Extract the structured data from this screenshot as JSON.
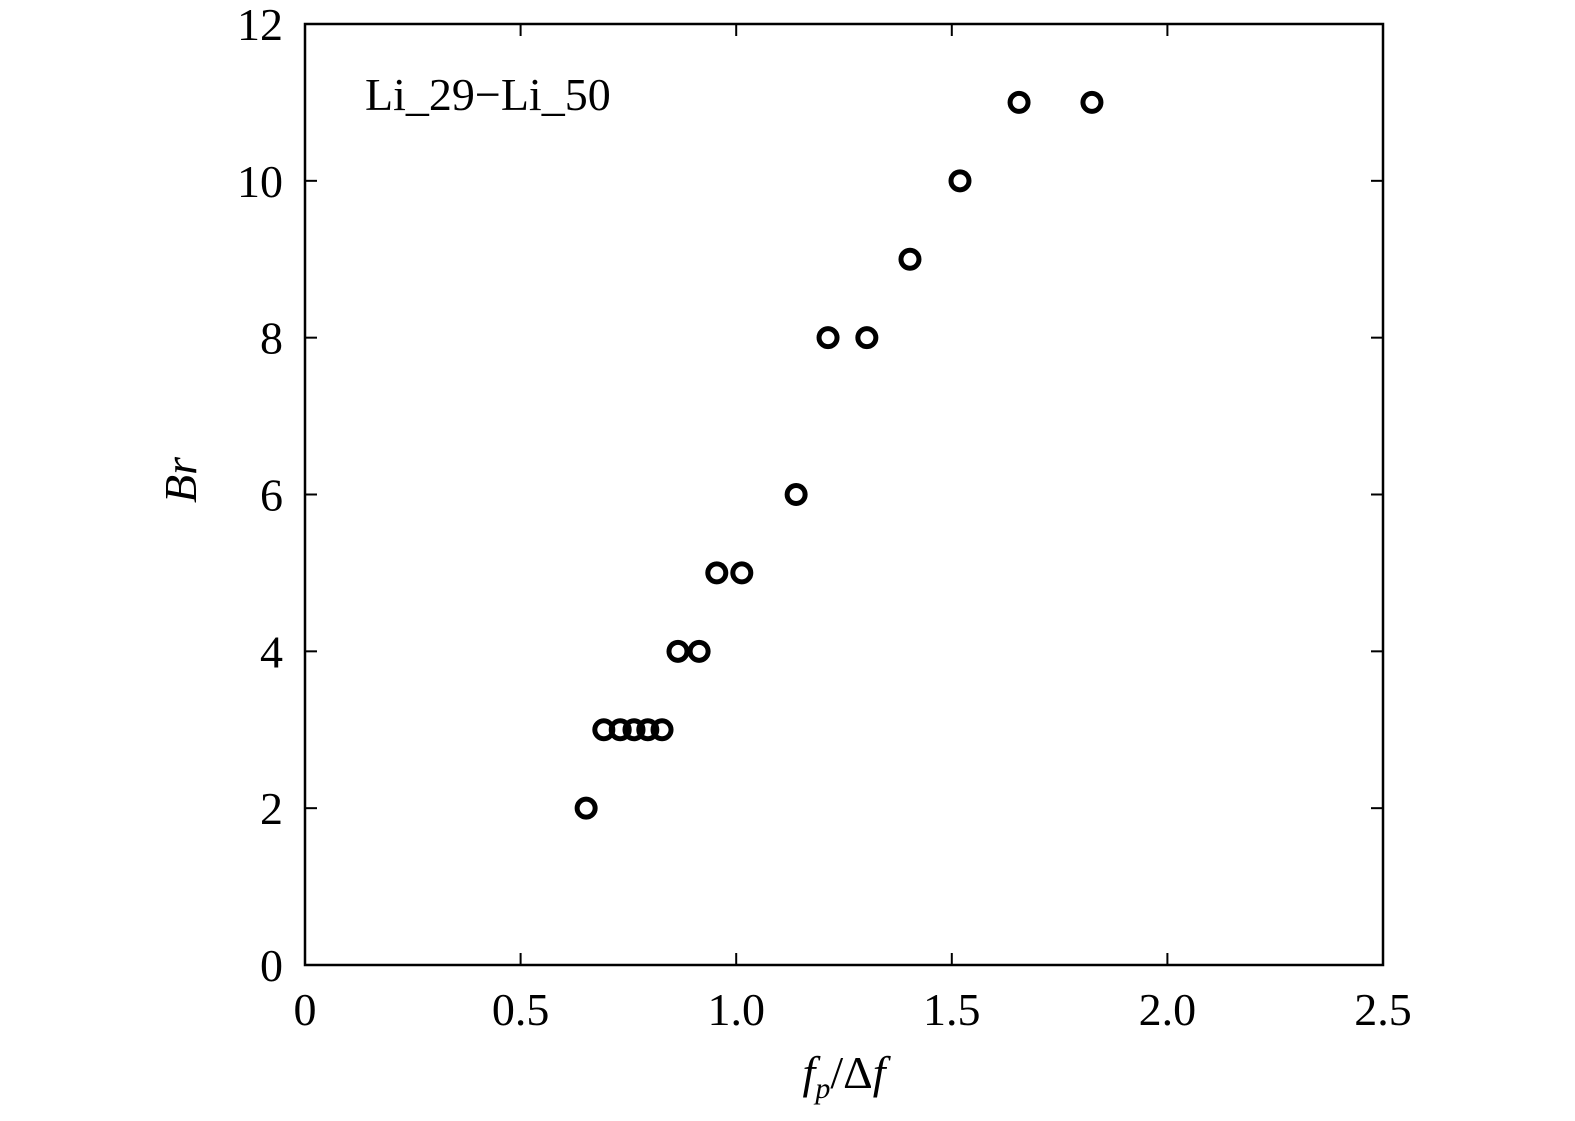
{
  "chart_data": {
    "type": "scatter",
    "annotation": "Li_29−Li_50",
    "x_label": [
      "f",
      "p",
      "/Δ",
      "f"
    ],
    "y_label": "Br",
    "series": [
      {
        "color": "#000000",
        "x": [
          0.652,
          0.693,
          0.731,
          0.763,
          0.795,
          0.828,
          0.865,
          0.914,
          0.955,
          1.013,
          1.139,
          1.213,
          1.303,
          1.403,
          1.519,
          1.656,
          1.825
        ],
        "values": [
          2,
          3,
          3,
          3,
          3,
          3,
          4,
          4,
          5,
          5,
          6,
          8,
          8,
          9,
          10,
          11,
          11
        ]
      }
    ],
    "xlim": [
      0,
      2.5
    ],
    "xticks": [
      0,
      0.5,
      {
        "value": 1,
        "label": "1.0"
      },
      1.5,
      {
        "value": 2,
        "label": "2.0"
      },
      2.5
    ],
    "ylim": [
      0,
      12
    ],
    "yticks": [
      0,
      2,
      4,
      6,
      8,
      10,
      12
    ],
    "grid": false
  }
}
